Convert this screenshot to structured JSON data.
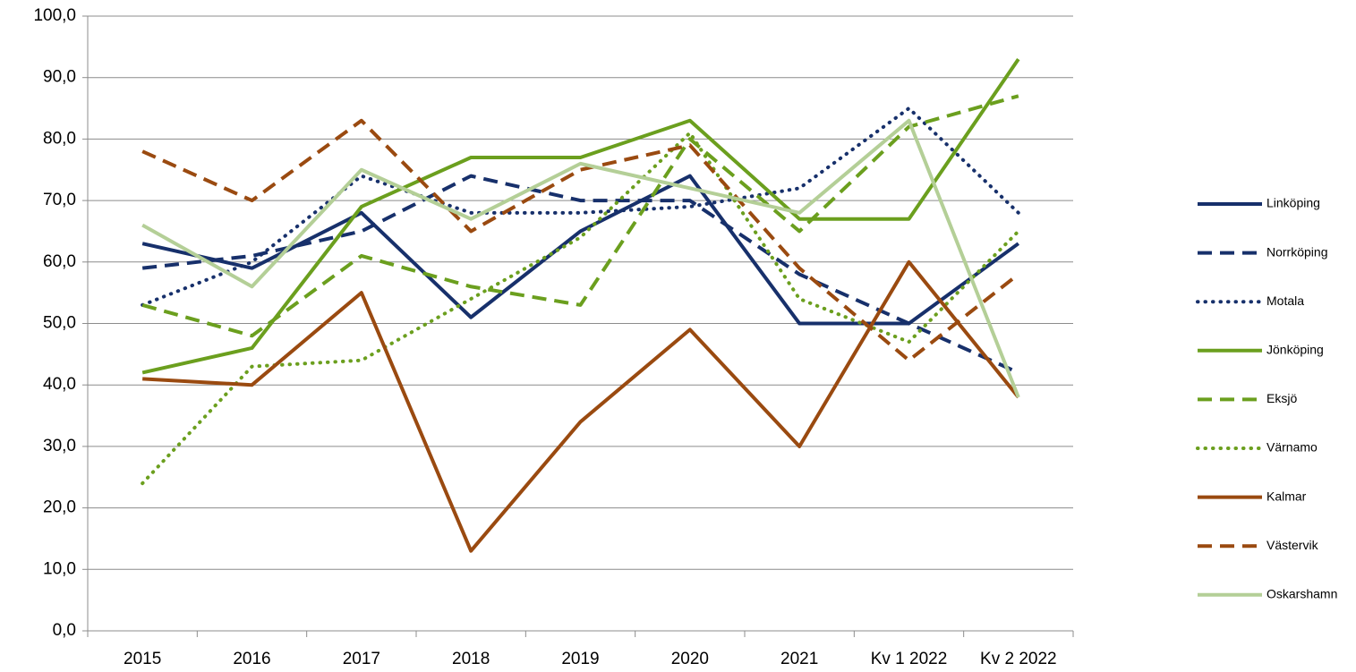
{
  "chart_data": {
    "type": "line",
    "categories": [
      "2015",
      "2016",
      "2017",
      "2018",
      "2019",
      "2020",
      "2021",
      "Kv 1 2022",
      "Kv 2 2022"
    ],
    "ylim": [
      0,
      100
    ],
    "yticks": [
      {
        "value": 0,
        "label": "0,0"
      },
      {
        "value": 10,
        "label": "10,0"
      },
      {
        "value": 20,
        "label": "20,0"
      },
      {
        "value": 30,
        "label": "30,0"
      },
      {
        "value": 40,
        "label": "40,0"
      },
      {
        "value": 50,
        "label": "50,0"
      },
      {
        "value": 60,
        "label": "60,0"
      },
      {
        "value": 70,
        "label": "70,0"
      },
      {
        "value": 80,
        "label": "80,0"
      },
      {
        "value": 90,
        "label": "90,0"
      },
      {
        "value": 100,
        "label": "100,0"
      }
    ],
    "grid": true,
    "legend": "right",
    "series": [
      {
        "name": "Linköping",
        "color": "#17306b",
        "dash": "solid",
        "values": [
          63,
          59,
          68,
          51,
          65,
          74,
          50,
          50,
          63
        ]
      },
      {
        "name": "Norrköping",
        "color": "#17306b",
        "dash": "dashed",
        "values": [
          59,
          61,
          65,
          74,
          70,
          70,
          58,
          50,
          42
        ]
      },
      {
        "name": "Motala",
        "color": "#17306b",
        "dash": "dotted",
        "values": [
          53,
          60,
          74,
          68,
          68,
          69,
          72,
          85,
          68
        ]
      },
      {
        "name": "Jönköping",
        "color": "#6b9f1e",
        "dash": "solid",
        "values": [
          42,
          46,
          69,
          77,
          77,
          83,
          67,
          67,
          93
        ]
      },
      {
        "name": "Eksjö",
        "color": "#6b9f1e",
        "dash": "dashed",
        "values": [
          53,
          48,
          61,
          56,
          53,
          80,
          65,
          82,
          87
        ]
      },
      {
        "name": "Värnamo",
        "color": "#6b9f1e",
        "dash": "dotted",
        "values": [
          24,
          43,
          44,
          54,
          64,
          81,
          54,
          47,
          65
        ]
      },
      {
        "name": "Kalmar",
        "color": "#9a4a10",
        "dash": "solid",
        "values": [
          41,
          40,
          55,
          13,
          34,
          49,
          30,
          60,
          38
        ]
      },
      {
        "name": "Västervik",
        "color": "#9a4a10",
        "dash": "dashed",
        "values": [
          78,
          70,
          83,
          65,
          75,
          79,
          59,
          44,
          58
        ]
      },
      {
        "name": "Oskarshamn",
        "color": "#b4cf97",
        "dash": "solid",
        "values": [
          66,
          56,
          75,
          67,
          76,
          72,
          68,
          83,
          38
        ]
      }
    ]
  }
}
